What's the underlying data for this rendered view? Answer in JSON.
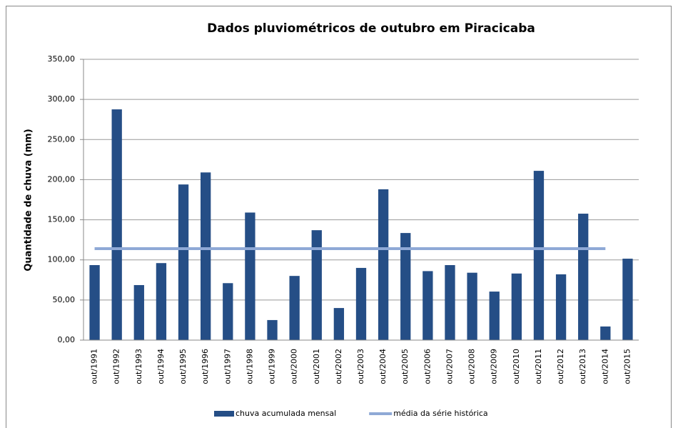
{
  "chart_data": {
    "type": "bar",
    "title": "Dados pluviométricos de outubro em Piracicaba",
    "y_label": "Quantidade de chuva (mm)",
    "categories": [
      "out/1991",
      "out/1992",
      "out/1993",
      "out/1994",
      "out/1995",
      "out/1996",
      "out/1997",
      "out/1998",
      "out/1999",
      "out/2000",
      "out/2001",
      "out/2002",
      "out/2003",
      "out/2004",
      "out/2005",
      "out/2006",
      "out/2007",
      "out/2008",
      "out/2009",
      "out/2010",
      "out/2011",
      "out/2012",
      "out/2013",
      "out/2014",
      "out/2015"
    ],
    "series": [
      {
        "name": "chuva acumulada mensal",
        "type": "bar",
        "color": "#254e86",
        "values": [
          93.5,
          287.6,
          68.6,
          96,
          194,
          209,
          71,
          159,
          25,
          80,
          137,
          40,
          90,
          188,
          133.5,
          86,
          93.5,
          84,
          60.5,
          83,
          211,
          82,
          157.6,
          17,
          101.5
        ]
      },
      {
        "name": "média da série histórica",
        "type": "line",
        "color": "#8fa9d6",
        "values": [
          114,
          114,
          114,
          114,
          114,
          114,
          114,
          114,
          114,
          114,
          114,
          114,
          114,
          114,
          114,
          114,
          114,
          114,
          114,
          114,
          114,
          114,
          114,
          114,
          null
        ]
      }
    ],
    "ylim": [
      0,
      350
    ],
    "yticks": [
      {
        "value": 0,
        "label": "0,00"
      },
      {
        "value": 50,
        "label": "50,00"
      },
      {
        "value": 100,
        "label": "100,00"
      },
      {
        "value": 150,
        "label": "150,00"
      },
      {
        "value": 200,
        "label": "200,00"
      },
      {
        "value": 250,
        "label": "250,00"
      },
      {
        "value": 300,
        "label": "300,00"
      },
      {
        "value": 350,
        "label": "350,00"
      }
    ],
    "grid": true,
    "legend": "bottom"
  }
}
